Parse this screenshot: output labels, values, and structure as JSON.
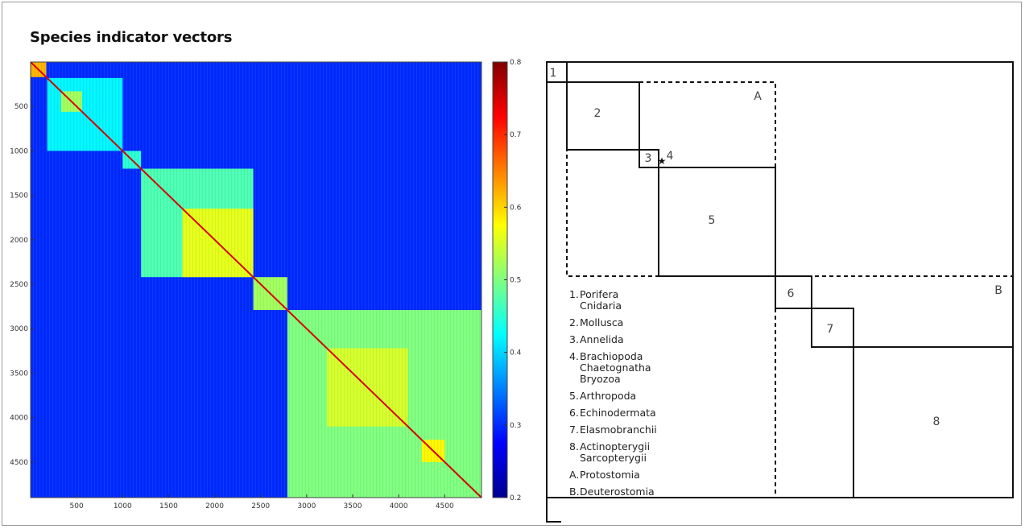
{
  "title": "Species indicator vectors",
  "chart_data": [
    {
      "type": "heatmap",
      "title": "",
      "x_ticks": [
        "500",
        "1000",
        "1500",
        "2000",
        "2500",
        "3000",
        "3500",
        "4000",
        "4500"
      ],
      "y_ticks": [
        "500",
        "1000",
        "1500",
        "2000",
        "2500",
        "3000",
        "3500",
        "4000",
        "4500"
      ],
      "range": [
        0,
        4900
      ],
      "colorbar": {
        "range": [
          0.2,
          0.8
        ],
        "ticks": [
          "0.8",
          "0.7",
          "0.6",
          "0.5",
          "0.4",
          "0.3",
          "0.2"
        ]
      },
      "background_value": 0.3,
      "blocks": [
        {
          "start": 0,
          "end": 170,
          "value": 0.62
        },
        {
          "start": 180,
          "end": 1000,
          "value": 0.42
        },
        {
          "start": 330,
          "end": 560,
          "value": 0.52
        },
        {
          "start": 1000,
          "end": 1200,
          "value": 0.45
        },
        {
          "start": 1200,
          "end": 2420,
          "value": 0.47
        },
        {
          "start": 1650,
          "end": 2420,
          "value": 0.56
        },
        {
          "start": 2420,
          "end": 2790,
          "value": 0.52
        },
        {
          "start": 2790,
          "end": 4900,
          "value": 0.5
        },
        {
          "start": 3220,
          "end": 4100,
          "value": 0.55
        },
        {
          "start": 4250,
          "end": 4500,
          "value": 0.58
        }
      ]
    },
    {
      "type": "diagram",
      "boxes": [
        "1",
        "2",
        "3",
        "4",
        "5",
        "6",
        "7",
        "8"
      ],
      "groups": [
        "A",
        "B"
      ],
      "legend": [
        {
          "num": "1.",
          "names": [
            "Porifera",
            "Cnidaria"
          ]
        },
        {
          "num": "2.",
          "names": [
            "Mollusca"
          ]
        },
        {
          "num": "3.",
          "names": [
            "Annelida"
          ]
        },
        {
          "num": "4.",
          "names": [
            "Brachiopoda",
            "Chaetognatha",
            "Bryozoa"
          ]
        },
        {
          "num": "5.",
          "names": [
            "Arthropoda"
          ]
        },
        {
          "num": "6.",
          "names": [
            "Echinodermata"
          ]
        },
        {
          "num": "7.",
          "names": [
            "Elasmobranchii"
          ]
        },
        {
          "num": "8.",
          "names": [
            "Actinopterygii",
            "Sarcopterygii"
          ]
        },
        {
          "num": "A.",
          "names": [
            "Protostomia"
          ]
        },
        {
          "num": "B.",
          "names": [
            "Deuterostomia"
          ]
        }
      ]
    }
  ],
  "colors": {
    "colormap": [
      "#00008f",
      "#0000ff",
      "#00ffff",
      "#ffff00",
      "#ff0000",
      "#800000"
    ],
    "line": "#111111"
  }
}
